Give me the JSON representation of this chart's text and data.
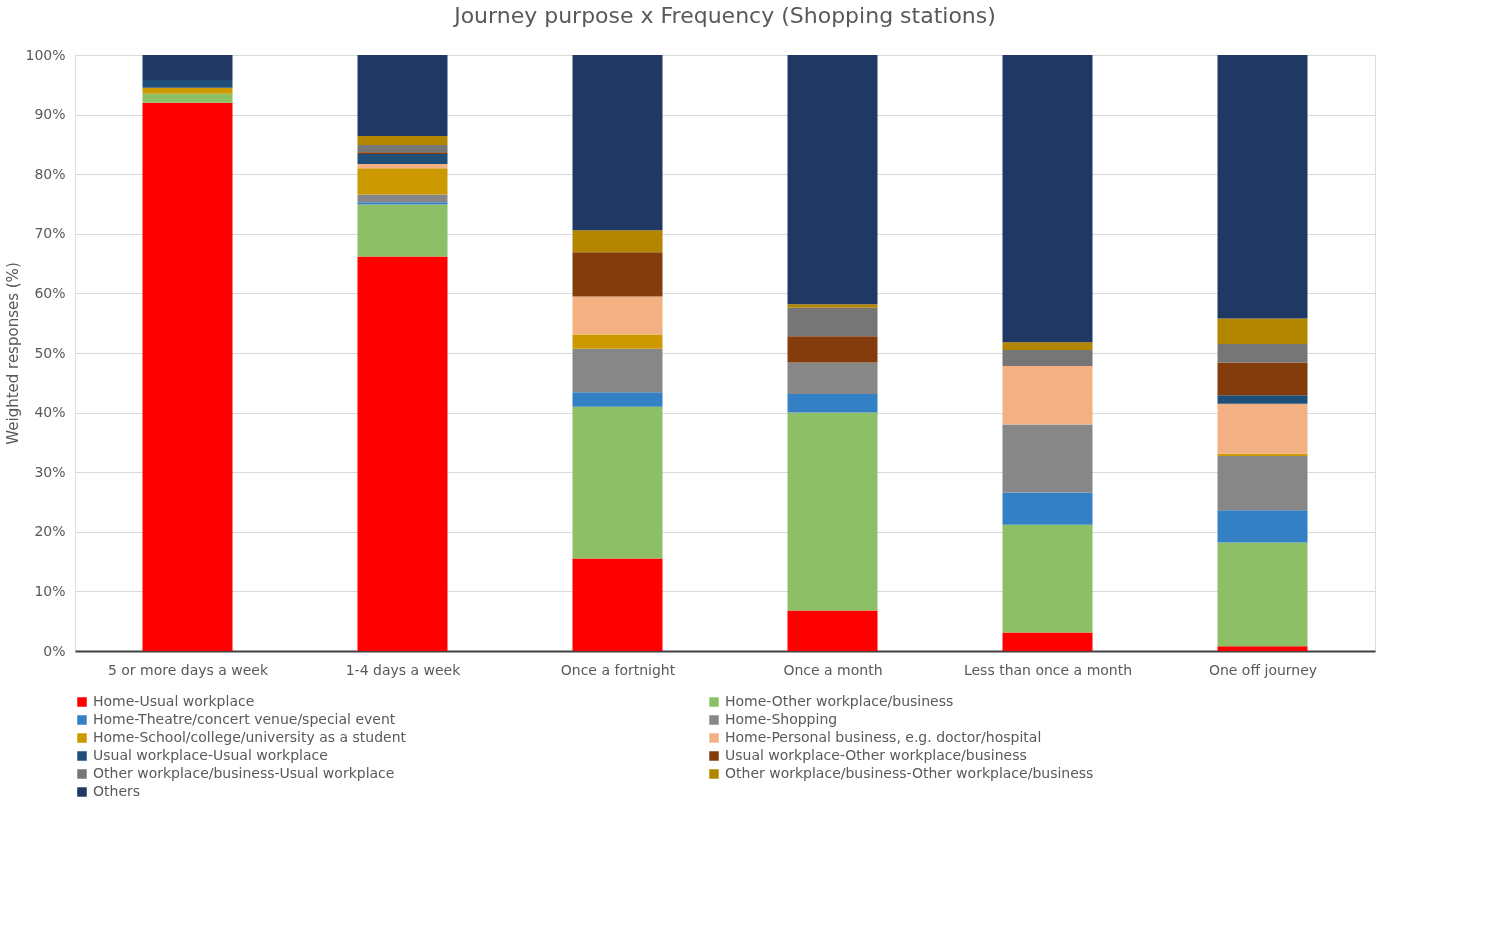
{
  "chart_data": {
    "type": "bar",
    "stacked": true,
    "title": "Journey purpose x Frequency (Shopping stations)",
    "ylabel": "Weighted responses (%)",
    "categories": [
      "5 or more days a week",
      "1-4 days a week",
      "Once a fortnight",
      "Once a month",
      "Less than once a month",
      "One off journey"
    ],
    "ylim": [
      0,
      100
    ],
    "yticks": [
      {
        "value": 0,
        "label": "0%"
      },
      {
        "value": 10,
        "label": "10%"
      },
      {
        "value": 20,
        "label": "20%"
      },
      {
        "value": 30,
        "label": "30%"
      },
      {
        "value": 40,
        "label": "40%"
      },
      {
        "value": 50,
        "label": "50%"
      },
      {
        "value": 60,
        "label": "60%"
      },
      {
        "value": 70,
        "label": "70%"
      },
      {
        "value": 80,
        "label": "80%"
      },
      {
        "value": 90,
        "label": "90%"
      },
      {
        "value": 100,
        "label": "100%"
      }
    ],
    "grid": "y",
    "legend": "bottom",
    "series": [
      {
        "name": "Home-Usual workplace",
        "color": "#ff0000",
        "values": [
          92.0,
          66.2,
          15.5,
          6.8,
          3.1,
          0.8
        ]
      },
      {
        "name": "Home-Other workplace/business",
        "color": "#8dc066",
        "values": [
          1.5,
          8.7,
          25.5,
          33.2,
          18.1,
          17.4
        ]
      },
      {
        "name": "Home-Theatre/concert venue/special event",
        "color": "#3380c4",
        "values": [
          null,
          0.4,
          2.4,
          3.1,
          5.4,
          5.4
        ]
      },
      {
        "name": "Home-Shopping",
        "color": "#878787",
        "values": [
          null,
          1.3,
          7.3,
          5.3,
          11.4,
          9.1
        ]
      },
      {
        "name": "Home-School/college/university as a student",
        "color": "#cc9900",
        "values": [
          1.0,
          4.4,
          2.4,
          null,
          null,
          0.4
        ]
      },
      {
        "name": "Home-Personal business, e.g. doctor/hospital",
        "color": "#f3b183",
        "values": [
          null,
          0.7,
          6.4,
          null,
          9.8,
          8.4
        ]
      },
      {
        "name": "Usual workplace-Usual workplace",
        "color": "#1f4e79",
        "values": [
          1.3,
          1.7,
          null,
          null,
          null,
          1.4
        ]
      },
      {
        "name": "Usual workplace-Other workplace/business",
        "color": "#843c0c",
        "values": [
          null,
          0.3,
          7.4,
          4.4,
          null,
          5.5
        ]
      },
      {
        "name": "Other workplace/business-Usual workplace",
        "color": "#767676",
        "values": [
          null,
          1.2,
          null,
          4.8,
          2.7,
          3.1
        ]
      },
      {
        "name": "Other workplace/business-Other workplace/business",
        "color": "#b38600",
        "values": [
          null,
          1.5,
          3.7,
          0.6,
          1.3,
          4.3
        ]
      },
      {
        "name": "Others",
        "color": "#203864",
        "values": [
          4.2,
          13.6,
          29.4,
          41.8,
          48.2,
          44.2
        ]
      }
    ]
  }
}
